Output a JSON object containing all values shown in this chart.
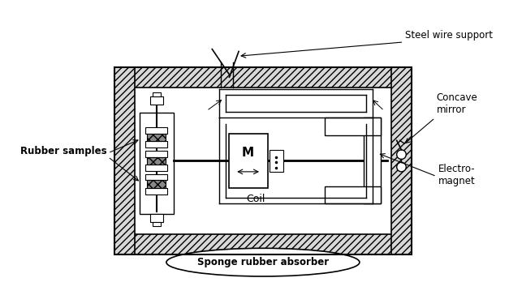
{
  "bg_color": "#ffffff",
  "labels": {
    "steel_wire": "Steel wire support",
    "concave_mirror": "Concave\nmirror",
    "rubber_samples": "Rubber samples",
    "coil": "Coil",
    "M": "M",
    "electromagnet": "Electro-\nmagnet",
    "sponge": "Sponge rubber absorber"
  },
  "figsize": [
    6.27,
    3.64
  ],
  "dpi": 100
}
